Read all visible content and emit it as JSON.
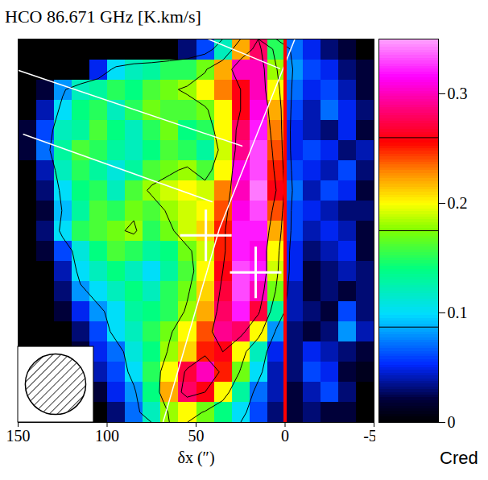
{
  "chart_data": {
    "type": "heatmap",
    "title": "HCO 86.671 GHz [K.km/s]",
    "x_label": "δx (″)",
    "xlim": [
      150,
      -50
    ],
    "xticks": [
      150,
      100,
      50,
      0,
      -50
    ],
    "ylim": [
      -95,
      95
    ],
    "tick_labels": "x",
    "x": [
      145,
      135,
      125,
      115,
      105,
      95,
      85,
      75,
      65,
      55,
      45,
      35,
      25,
      15,
      5,
      -5,
      -15,
      -25,
      -35,
      -45
    ],
    "y": [
      90,
      80,
      70,
      60,
      50,
      40,
      30,
      20,
      10,
      0,
      -10,
      -20,
      -30,
      -40,
      -50,
      -60,
      -70,
      -80,
      -90
    ],
    "z": [
      [
        0,
        0,
        0,
        0,
        0,
        0,
        0,
        0,
        0,
        0.03,
        0.06,
        0.12,
        0.22,
        0.28,
        0.15,
        0.07,
        0.05,
        0.03,
        0.02,
        0
      ],
      [
        0,
        0,
        0,
        0,
        0.05,
        0.1,
        0.12,
        0.13,
        0.15,
        0.15,
        0.17,
        0.22,
        0.3,
        0.3,
        0.18,
        0.08,
        0.06,
        0.05,
        0.03,
        0.02
      ],
      [
        0,
        0.02,
        0.08,
        0.12,
        0.13,
        0.15,
        0.14,
        0.16,
        0.17,
        0.18,
        0.2,
        0.23,
        0.26,
        0.3,
        0.2,
        0.07,
        0.05,
        0.06,
        0.04,
        0.02
      ],
      [
        0,
        0.04,
        0.1,
        0.14,
        0.15,
        0.12,
        0.15,
        0.17,
        0.16,
        0.16,
        0.17,
        0.2,
        0.26,
        0.31,
        0.22,
        0.06,
        0.04,
        0.07,
        0.05,
        0.03
      ],
      [
        0.02,
        0.06,
        0.12,
        0.13,
        0.16,
        0.14,
        0.12,
        0.15,
        0.17,
        0.14,
        0.15,
        0.2,
        0.28,
        0.32,
        0.23,
        0.05,
        0.04,
        0.03,
        0.05,
        0.02
      ],
      [
        0.02,
        0.07,
        0.13,
        0.16,
        0.15,
        0.13,
        0.12,
        0.14,
        0.16,
        0.15,
        0.13,
        0.19,
        0.29,
        0.33,
        0.24,
        0.05,
        0.06,
        0.05,
        0.03,
        0.04
      ],
      [
        0,
        0.04,
        0.12,
        0.15,
        0.13,
        0.11,
        0.13,
        0.16,
        0.17,
        0.18,
        0.16,
        0.2,
        0.31,
        0.33,
        0.25,
        0.06,
        0.05,
        0.04,
        0.06,
        0.03
      ],
      [
        0,
        0.03,
        0.1,
        0.14,
        0.15,
        0.12,
        0.16,
        0.18,
        0.19,
        0.2,
        0.19,
        0.23,
        0.3,
        0.34,
        0.26,
        0.07,
        0.04,
        0.06,
        0.05,
        0.02
      ],
      [
        0,
        0.02,
        0.09,
        0.13,
        0.16,
        0.15,
        0.17,
        0.16,
        0.18,
        0.19,
        0.2,
        0.24,
        0.31,
        0.33,
        0.24,
        0.06,
        0.05,
        0.04,
        0.03,
        0.03
      ],
      [
        0,
        0.03,
        0.1,
        0.15,
        0.16,
        0.17,
        0.18,
        0.15,
        0.17,
        0.19,
        0.21,
        0.25,
        0.32,
        0.32,
        0.22,
        0.06,
        0.04,
        0.05,
        0.04,
        0.02
      ],
      [
        0,
        0.02,
        0.06,
        0.11,
        0.14,
        0.16,
        0.15,
        0.13,
        0.14,
        0.17,
        0.19,
        0.25,
        0.32,
        0.31,
        0.2,
        0.05,
        0.03,
        0.04,
        0.05,
        0.02
      ],
      [
        0,
        0,
        0.04,
        0.1,
        0.12,
        0.14,
        0.12,
        0.1,
        0.13,
        0.16,
        0.2,
        0.26,
        0.33,
        0.32,
        0.19,
        0.05,
        0.02,
        0.03,
        0.04,
        0.03
      ],
      [
        0,
        0,
        0.03,
        0.08,
        0.1,
        0.12,
        0.14,
        0.12,
        0.15,
        0.17,
        0.21,
        0.27,
        0.33,
        0.3,
        0.17,
        0.04,
        0.02,
        0.03,
        0.02,
        0.03
      ],
      [
        0,
        0,
        0.02,
        0.05,
        0.08,
        0.1,
        0.13,
        0.14,
        0.15,
        0.18,
        0.22,
        0.28,
        0.32,
        0.27,
        0.13,
        0.04,
        0.03,
        0.02,
        0.06,
        0.03
      ],
      [
        0,
        0,
        0,
        0.03,
        0.06,
        0.1,
        0.12,
        0.15,
        0.17,
        0.2,
        0.24,
        0.29,
        0.28,
        0.2,
        0.08,
        0.03,
        0.02,
        0.03,
        0.08,
        0.04
      ],
      [
        0,
        0,
        0,
        0.02,
        0.05,
        0.07,
        0.11,
        0.14,
        0.18,
        0.21,
        0.25,
        0.26,
        0.2,
        0.12,
        0.05,
        0.03,
        0.05,
        0.04,
        0.03,
        0.02
      ],
      [
        0,
        0,
        0,
        0.02,
        0.04,
        0.06,
        0.1,
        0.15,
        0.2,
        0.27,
        0.3,
        0.25,
        0.17,
        0.1,
        0.04,
        0.03,
        0.06,
        0.05,
        0.02,
        0.01
      ],
      [
        0,
        0,
        0,
        0,
        0.02,
        0.05,
        0.08,
        0.14,
        0.22,
        0.28,
        0.26,
        0.2,
        0.13,
        0.07,
        0.04,
        0.02,
        0.04,
        0.06,
        0.03,
        0
      ],
      [
        0,
        0,
        0,
        0,
        0,
        0.03,
        0.07,
        0.12,
        0.18,
        0.2,
        0.17,
        0.14,
        0.1,
        0.06,
        0.03,
        0.02,
        0.03,
        0.02,
        0.02,
        0
      ]
    ],
    "colorbar": {
      "range": [
        0,
        0.35
      ],
      "ticks": [
        0,
        0.1,
        0.2,
        0.3
      ]
    },
    "contour_levels": [
      0.087,
      0.175,
      0.26
    ],
    "reference_line": {
      "x": 0,
      "color": "#ff0000"
    },
    "crosses": [
      [
        44.5,
        -2.3
      ],
      [
        16.5,
        -20.7
      ]
    ],
    "lines": [
      [
        [
          150,
          79.5
        ],
        [
          24.2,
          42.0
        ]
      ],
      [
        [
          147,
          47.8
        ],
        [
          41.1,
          14.4
        ]
      ],
      [
        [
          43.2,
          95
        ],
        [
          3.0,
          80.4
        ]
      ],
      [
        [
          -5.5,
          95
        ],
        [
          36.9,
          1.0
        ],
        [
          68.6,
          -95
        ]
      ]
    ],
    "beam": 34,
    "annotation": "Cred"
  }
}
